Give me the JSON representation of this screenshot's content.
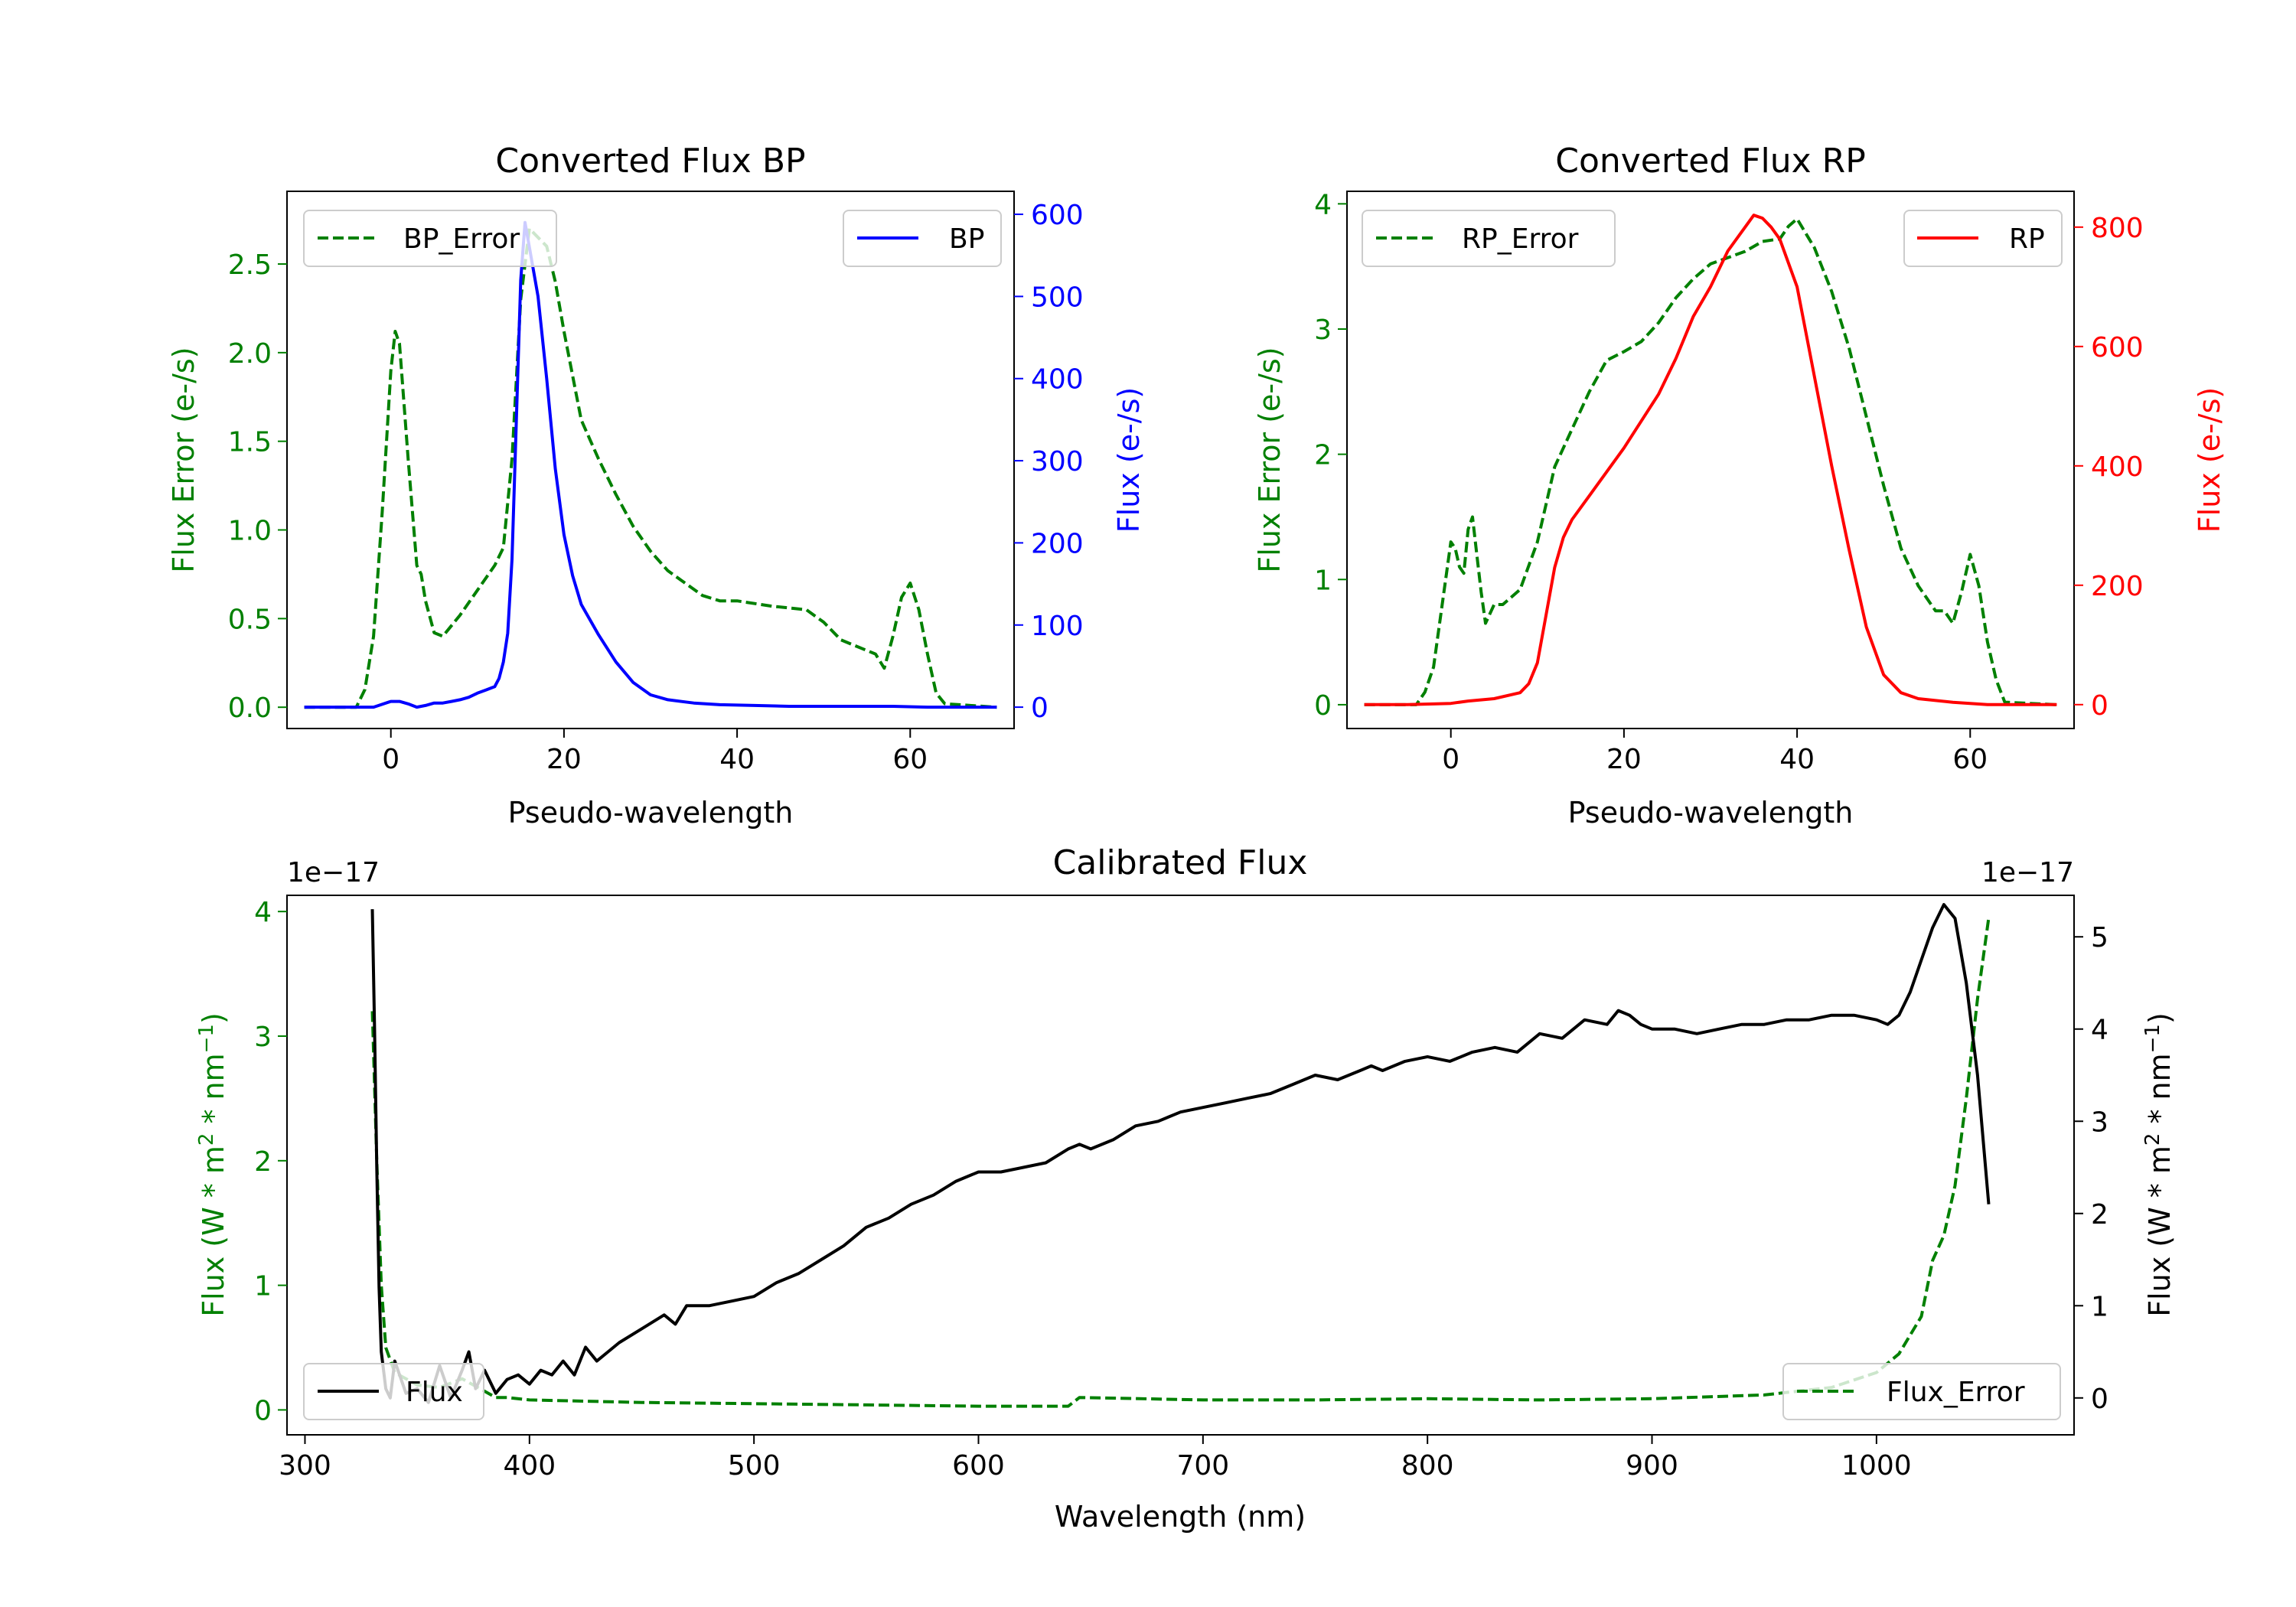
{
  "chart_data": [
    {
      "id": "bp",
      "type": "line",
      "title": "Converted Flux BP",
      "xlabel": "Pseudo-wavelength",
      "ylabel_left": "Flux Error (e-/s)",
      "ylabel_right": "Flux (e-/s)",
      "xlim": [
        -12,
        72
      ],
      "ylim_left": [
        -0.12,
        2.91
      ],
      "ylim_right": [
        -26,
        628
      ],
      "xticks": [
        0,
        20,
        40,
        60
      ],
      "yticks_left": [
        "0.0",
        "0.5",
        "1.0",
        "1.5",
        "2.0",
        "2.5"
      ],
      "yticks_left_values": [
        0,
        0.5,
        1.0,
        1.5,
        2.0,
        2.5
      ],
      "yticks_right": [
        0,
        100,
        200,
        300,
        400,
        500,
        600
      ],
      "colors": {
        "left_axis": "#008000",
        "right_axis": "#0000ff"
      },
      "series": [
        {
          "name": "BP_Error",
          "axis": "left",
          "color": "#008000",
          "style": "dashed",
          "x": [
            -10,
            -4,
            -3,
            -2,
            -1,
            0,
            0.5,
            1,
            2,
            3,
            3.5,
            4,
            5,
            6,
            8,
            10,
            12,
            13,
            14,
            15,
            16,
            18,
            19,
            20,
            22,
            24,
            26,
            28,
            30,
            32,
            36,
            38,
            40,
            44,
            48,
            50,
            52,
            55,
            56,
            57,
            58,
            59,
            60,
            61,
            62,
            63,
            64,
            70
          ],
          "values": [
            0.0,
            0.0,
            0.1,
            0.4,
            1.1,
            1.9,
            2.12,
            2.05,
            1.4,
            0.8,
            0.75,
            0.6,
            0.42,
            0.4,
            0.52,
            0.66,
            0.8,
            0.9,
            1.4,
            2.3,
            2.7,
            2.6,
            2.4,
            2.12,
            1.62,
            1.4,
            1.2,
            1.02,
            0.88,
            0.77,
            0.63,
            0.6,
            0.6,
            0.57,
            0.55,
            0.48,
            0.38,
            0.32,
            0.3,
            0.22,
            0.4,
            0.62,
            0.7,
            0.55,
            0.3,
            0.08,
            0.02,
            0.0
          ]
        },
        {
          "name": "BP",
          "axis": "right",
          "color": "#0000ff",
          "style": "solid",
          "x": [
            -10,
            -2,
            0,
            1,
            2,
            3,
            4,
            5,
            6,
            7,
            8,
            9,
            10,
            11,
            12,
            12.5,
            13,
            13.5,
            14,
            14.5,
            15,
            15.5,
            16,
            17,
            18,
            19,
            20,
            21,
            22,
            24,
            26,
            28,
            30,
            32,
            35,
            38,
            42,
            46,
            50,
            54,
            58,
            62,
            65,
            70
          ],
          "values": [
            0,
            0,
            7,
            7,
            4,
            0,
            2,
            5,
            5,
            7,
            9,
            12,
            17,
            21,
            25,
            35,
            55,
            90,
            180,
            350,
            520,
            590,
            560,
            500,
            400,
            290,
            210,
            160,
            125,
            88,
            55,
            30,
            15,
            9,
            5,
            3,
            2,
            1,
            1,
            1,
            1,
            0,
            0,
            0
          ]
        }
      ],
      "legend": [
        {
          "label": "BP_Error",
          "position": "upper-left"
        },
        {
          "label": "BP",
          "position": "upper-right"
        }
      ]
    },
    {
      "id": "rp",
      "type": "line",
      "title": "Converted Flux RP",
      "xlabel": "Pseudo-wavelength",
      "ylabel_left": "Flux Error (e-/s)",
      "ylabel_right": "Flux (e-/s)",
      "xlim": [
        -12,
        72
      ],
      "ylim_left": [
        -0.19,
        4.1
      ],
      "ylim_right": [
        -40,
        860
      ],
      "xticks": [
        0,
        20,
        40,
        60
      ],
      "yticks_left": [
        "0",
        "1",
        "2",
        "3",
        "4"
      ],
      "yticks_left_values": [
        0,
        1,
        2,
        3,
        4
      ],
      "yticks_right": [
        0,
        200,
        400,
        600,
        800
      ],
      "colors": {
        "left_axis": "#008000",
        "right_axis": "#ff0000"
      },
      "series": [
        {
          "name": "RP_Error",
          "axis": "left",
          "color": "#008000",
          "style": "dashed",
          "x": [
            -10,
            -4,
            -3,
            -2,
            -1,
            0,
            0.5,
            1,
            1.5,
            2,
            2.5,
            3,
            3.5,
            4,
            5,
            6,
            8,
            10,
            12,
            14,
            16,
            18,
            20,
            22,
            24,
            26,
            28,
            30,
            32,
            34,
            36,
            38,
            39,
            40,
            42,
            44,
            46,
            48,
            50,
            52,
            54,
            56,
            57,
            58,
            59,
            60,
            61,
            62,
            63,
            64,
            70
          ],
          "values": [
            0.0,
            0.0,
            0.1,
            0.3,
            0.8,
            1.3,
            1.25,
            1.1,
            1.05,
            1.4,
            1.5,
            1.2,
            0.9,
            0.65,
            0.8,
            0.8,
            0.92,
            1.3,
            1.9,
            2.2,
            2.5,
            2.75,
            2.82,
            2.9,
            3.05,
            3.25,
            3.4,
            3.52,
            3.57,
            3.62,
            3.7,
            3.72,
            3.82,
            3.88,
            3.65,
            3.3,
            2.85,
            2.3,
            1.75,
            1.25,
            0.95,
            0.75,
            0.75,
            0.65,
            0.9,
            1.2,
            0.95,
            0.5,
            0.2,
            0.02,
            0.0
          ]
        },
        {
          "name": "RP",
          "axis": "right",
          "color": "#ff0000",
          "style": "solid",
          "x": [
            -10,
            -5,
            0,
            2,
            5,
            8,
            9,
            10,
            11,
            12,
            13,
            14,
            16,
            20,
            24,
            26,
            28,
            30,
            32,
            34,
            35,
            36,
            37,
            38,
            40,
            42,
            44,
            46,
            48,
            50,
            52,
            54,
            58,
            62,
            70
          ],
          "values": [
            0,
            0,
            2,
            6,
            10,
            20,
            35,
            70,
            150,
            230,
            280,
            310,
            350,
            430,
            520,
            580,
            650,
            700,
            760,
            800,
            820,
            815,
            800,
            780,
            700,
            550,
            400,
            260,
            130,
            50,
            20,
            10,
            4,
            0,
            0
          ]
        }
      ],
      "legend": [
        {
          "label": "RP_Error",
          "position": "upper-left"
        },
        {
          "label": "RP",
          "position": "upper-right"
        }
      ]
    },
    {
      "id": "cal",
      "type": "line",
      "title": "Calibrated Flux",
      "xlabel": "Wavelength (nm)",
      "ylabel_left_main": "Flux (W * m",
      "ylabel_right_main": "Flux (W * m",
      "ylabel_mid1": " * nm",
      "ylabel_end": ")",
      "ylabel_sup1": "2",
      "ylabel_sup2": "−1",
      "offset_left": "1e−17",
      "offset_right": "1e−17",
      "xlim": [
        292,
        1088
      ],
      "ylim_left": [
        -0.2,
        4.13
      ],
      "ylim_right": [
        -0.4,
        5.45
      ],
      "xticks": [
        300,
        400,
        500,
        600,
        700,
        800,
        900,
        1000
      ],
      "yticks_left": [
        0,
        1,
        2,
        3,
        4
      ],
      "yticks_right": [
        0,
        1,
        2,
        3,
        4,
        5
      ],
      "colors": {
        "left_axis": "#008000",
        "right_axis": "#000000"
      },
      "series": [
        {
          "name": "Flux_Error",
          "axis": "left",
          "color": "#008000",
          "style": "dashed",
          "x": [
            330,
            332,
            334,
            336,
            340,
            350,
            360,
            370,
            380,
            385,
            390,
            400,
            450,
            500,
            550,
            600,
            640,
            645,
            700,
            750,
            800,
            850,
            900,
            950,
            980,
            1000,
            1010,
            1020,
            1025,
            1030,
            1035,
            1040,
            1045,
            1050
          ],
          "values": [
            3.2,
            2.0,
            1.0,
            0.5,
            0.3,
            0.2,
            0.18,
            0.25,
            0.15,
            0.1,
            0.1,
            0.08,
            0.06,
            0.05,
            0.04,
            0.03,
            0.03,
            0.1,
            0.08,
            0.08,
            0.09,
            0.08,
            0.09,
            0.12,
            0.18,
            0.3,
            0.45,
            0.75,
            1.2,
            1.4,
            1.8,
            2.5,
            3.3,
            3.95
          ]
        },
        {
          "name": "Flux",
          "axis": "right",
          "color": "#000000",
          "style": "solid",
          "x": [
            330,
            331,
            332,
            333,
            334,
            336,
            338,
            340,
            345,
            350,
            355,
            360,
            365,
            370,
            373,
            376,
            380,
            385,
            390,
            395,
            400,
            405,
            410,
            415,
            420,
            425,
            430,
            435,
            440,
            450,
            460,
            465,
            470,
            480,
            490,
            500,
            510,
            520,
            530,
            540,
            550,
            560,
            570,
            580,
            590,
            600,
            610,
            620,
            630,
            640,
            645,
            650,
            660,
            670,
            680,
            690,
            700,
            710,
            720,
            730,
            740,
            750,
            760,
            770,
            775,
            780,
            790,
            800,
            810,
            820,
            830,
            840,
            850,
            860,
            870,
            880,
            885,
            890,
            895,
            900,
            910,
            920,
            930,
            940,
            950,
            960,
            970,
            980,
            990,
            1000,
            1005,
            1010,
            1015,
            1020,
            1025,
            1030,
            1035,
            1040,
            1045,
            1050
          ],
          "values": [
            5.3,
            4.0,
            2.5,
            1.2,
            0.5,
            0.1,
            0.0,
            0.4,
            0.05,
            0.1,
            -0.05,
            0.35,
            0.0,
            0.3,
            0.5,
            0.1,
            0.3,
            0.05,
            0.2,
            0.25,
            0.15,
            0.3,
            0.25,
            0.4,
            0.25,
            0.55,
            0.4,
            0.5,
            0.6,
            0.75,
            0.9,
            0.8,
            1.0,
            1.0,
            1.05,
            1.1,
            1.25,
            1.35,
            1.5,
            1.65,
            1.85,
            1.95,
            2.1,
            2.2,
            2.35,
            2.45,
            2.45,
            2.5,
            2.55,
            2.7,
            2.75,
            2.7,
            2.8,
            2.95,
            3.0,
            3.1,
            3.15,
            3.2,
            3.25,
            3.3,
            3.4,
            3.5,
            3.45,
            3.55,
            3.6,
            3.55,
            3.65,
            3.7,
            3.65,
            3.75,
            3.8,
            3.75,
            3.95,
            3.9,
            4.1,
            4.05,
            4.2,
            4.15,
            4.05,
            4.0,
            4.0,
            3.95,
            4.0,
            4.05,
            4.05,
            4.1,
            4.1,
            4.15,
            4.15,
            4.1,
            4.05,
            4.15,
            4.4,
            4.75,
            5.1,
            5.35,
            5.2,
            4.5,
            3.5,
            2.1
          ]
        }
      ],
      "legend": [
        {
          "label": "Flux",
          "position": "lower-left"
        },
        {
          "label": "Flux_Error",
          "position": "lower-right"
        }
      ]
    }
  ]
}
